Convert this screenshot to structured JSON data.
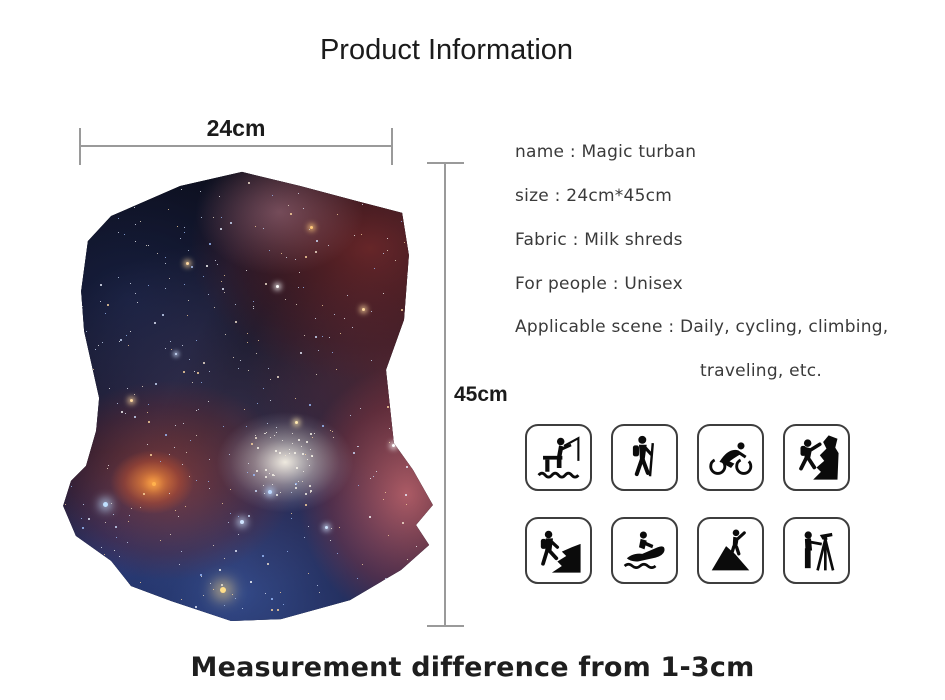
{
  "title": "Product Information",
  "dimensions": {
    "width_label": "24cm",
    "height_label": "45cm"
  },
  "product_photo": {
    "alt": "Galaxy print magic turban",
    "style": "starry nebula print"
  },
  "details": {
    "lines": [
      "name : Magic turban",
      "size : 24cm*45cm",
      "Fabric : Milk shreds",
      "For people : Unisex",
      "Applicable scene : Daily, cycling, climbing,",
      "traveling, etc."
    ]
  },
  "scene_icons": [
    {
      "icon": "fishing-icon"
    },
    {
      "icon": "trekking-icon"
    },
    {
      "icon": "cycling-icon"
    },
    {
      "icon": "rock-climbing-icon"
    },
    {
      "icon": "mountain-hiking-icon"
    },
    {
      "icon": "jet-ski-icon"
    },
    {
      "icon": "summit-icon"
    },
    {
      "icon": "surveying-icon"
    }
  ],
  "footer": "Measurement difference from 1-3cm",
  "colors": {
    "background": "#ffffff",
    "title_text": "#1b1b1b",
    "body_text": "#3a3a3a",
    "dimension_line": "#9a9a9a",
    "icon_border": "#3d3d3d",
    "icon_glyph": "#0b0b0b"
  }
}
